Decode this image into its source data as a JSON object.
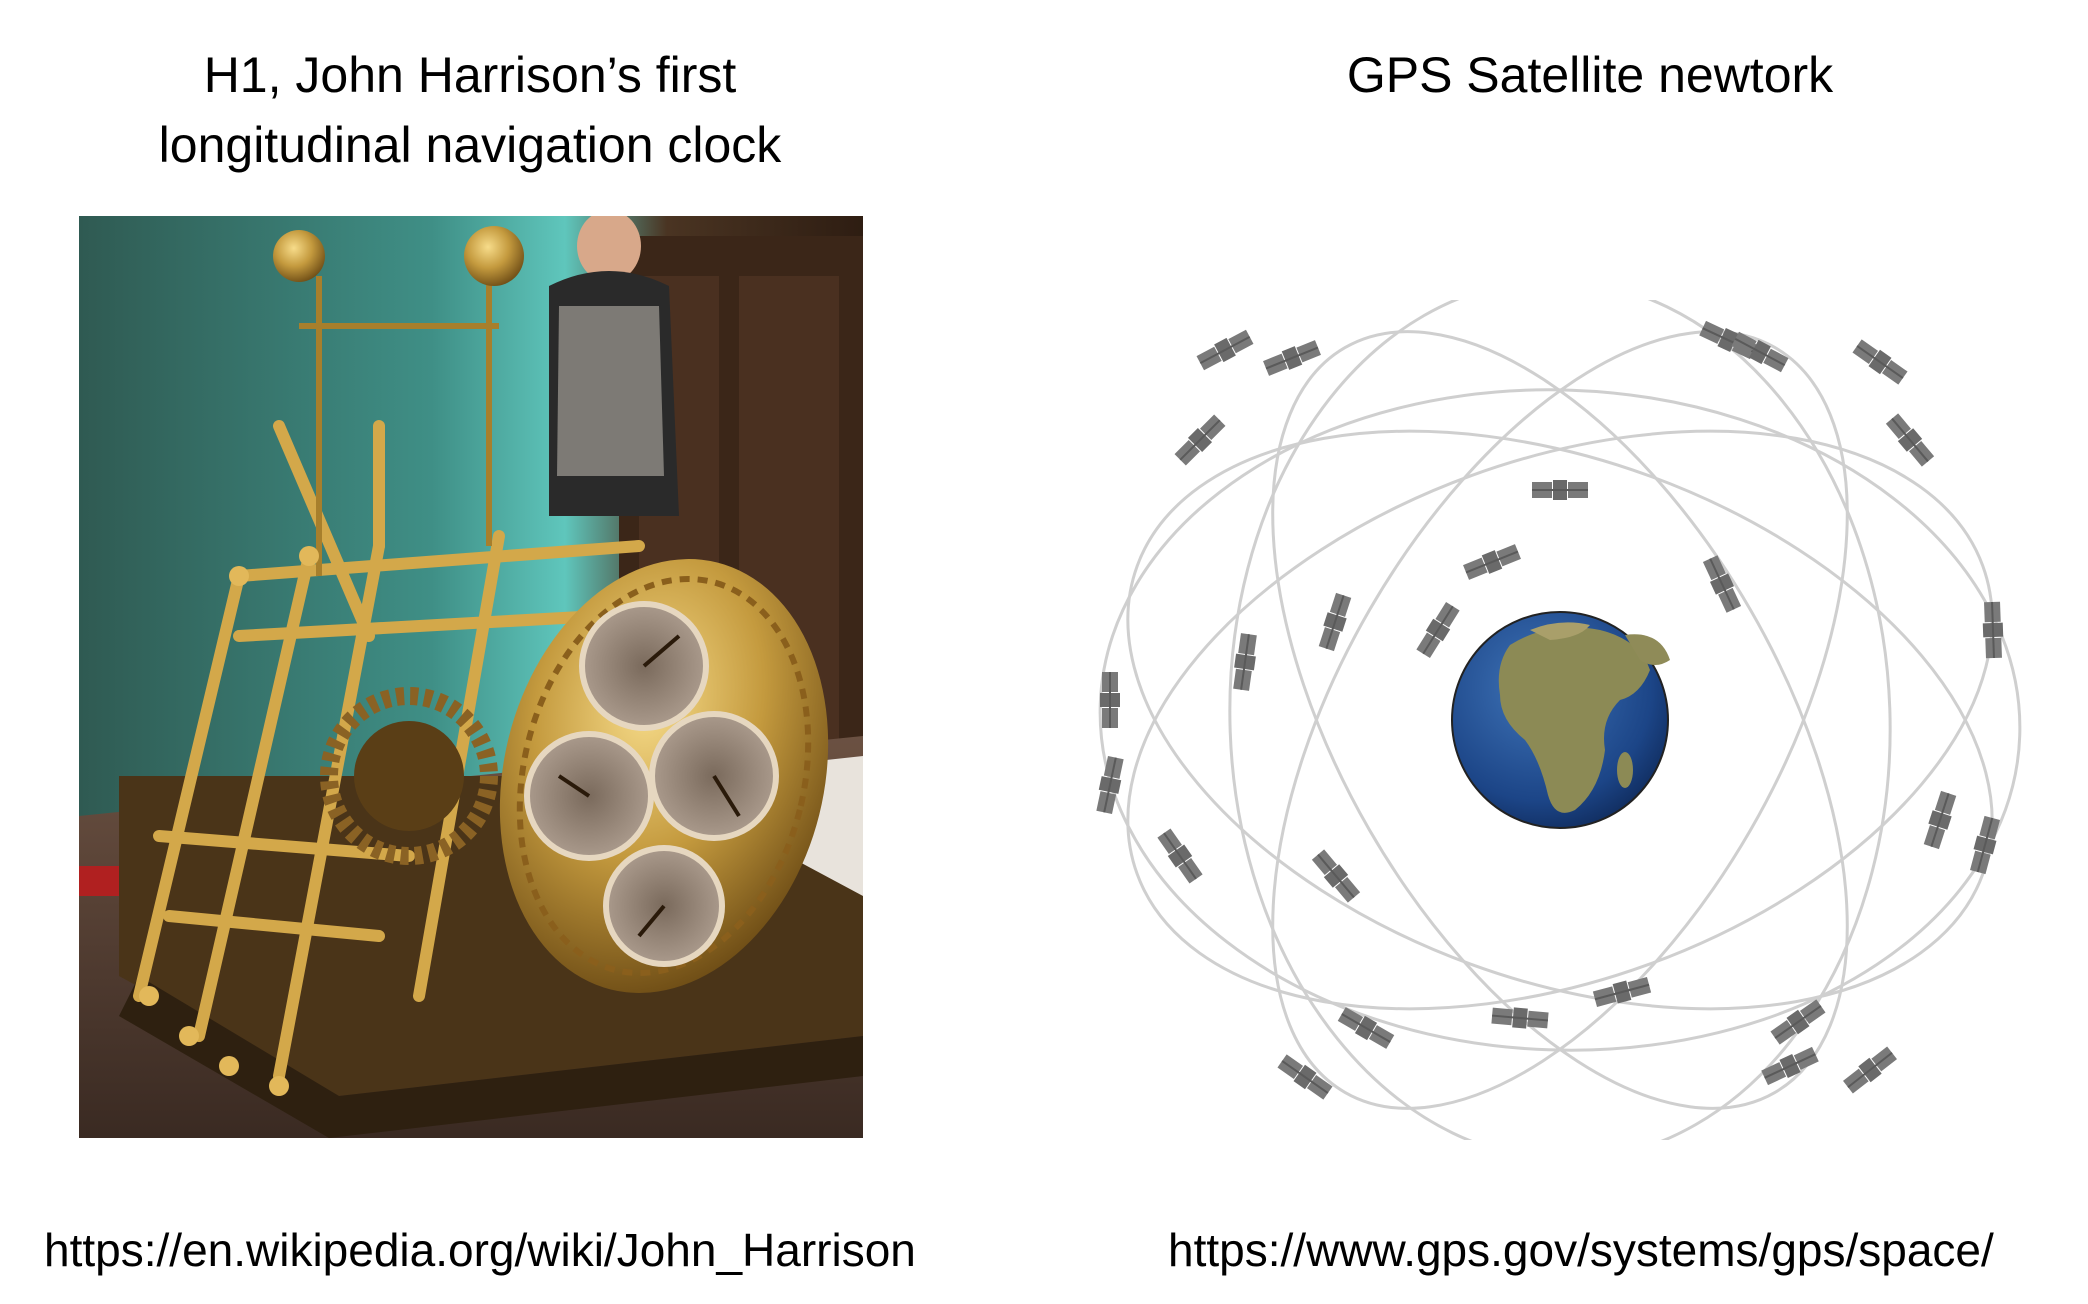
{
  "left_panel": {
    "title_line1": "H1, John Harrison’s first",
    "title_line2": "longitudinal navigation clock",
    "image": "h1-clock-photo",
    "source_url": "https://en.wikipedia.org/wiki/John_Harrison"
  },
  "right_panel": {
    "title": "GPS Satellite newtork",
    "image": "gps-satellite-constellation-diagram",
    "source_url": "https://www.gps.gov/systems/gps/space/"
  },
  "colors": {
    "orbit": "#cfcfcf",
    "satellite": "#7a7a7a",
    "ocean": "#1f4f8f",
    "land": "#8a8a55",
    "brass": "#b48a36"
  }
}
